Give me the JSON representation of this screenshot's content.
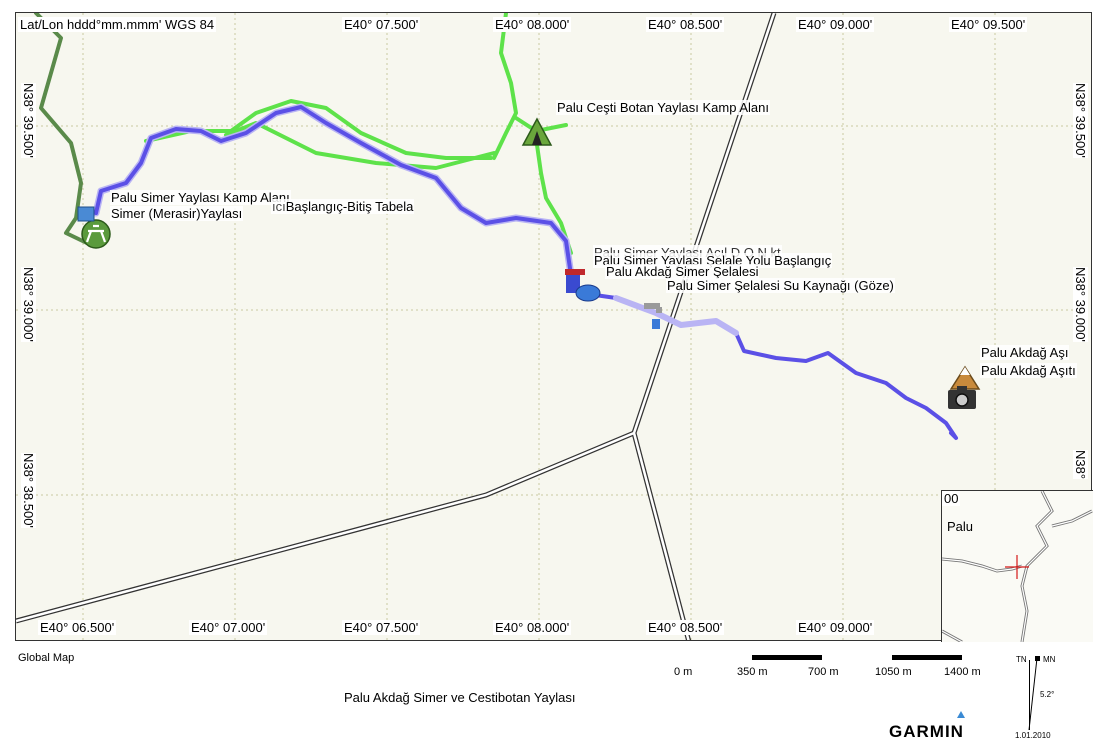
{
  "datum_label": "Lat/Lon hddd°mm.mmm' WGS 84",
  "top_lon_labels": [
    "E40° 07.500'",
    "E40° 08.000'",
    "E40° 08.500'",
    "E40° 09.000'",
    "E40° 09.500'"
  ],
  "bottom_lon_labels": [
    "E40° 06.500'",
    "E40° 07.000'",
    "E40° 07.500'",
    "E40° 08.000'",
    "E40° 08.500'",
    "E40° 09.000'"
  ],
  "left_lat_labels": [
    "N38° 39.500'",
    "N38° 39.000'",
    "N38° 38.500'"
  ],
  "right_lat_labels": [
    "N38° 39.500'",
    "N38° 39.000'",
    "N38°"
  ],
  "poi": {
    "botan_camp": "Palu Ceşti Botan Yaylası Kamp Alanı",
    "simer_camp": "Palu Simer Yaylası Kamp Alanı",
    "merasir": "Simer (Merasir)Yaylası",
    "tabela": "Başlangıç-Bitiş Tabela",
    "tabela_prefix": "ıcı",
    "hidden_overlap": "Palu Simer Yaylası Açıl D    O  N  kt",
    "waterfall_start": "Palu Simer Yaylası Şelale Yolu Başlangıç",
    "akdag_simer_waterfall": "Palu Akdağ Simer Şelalesi",
    "water_source": "Palu Simer  Şelalesi Su Kaynağı (Göze)",
    "akdag_pass_1": "Palu Akdağ Aşı",
    "akdag_pass_2": "Palu Akdağ Aşıtı"
  },
  "inset": {
    "label": "Palu",
    "corner_text": "00"
  },
  "footer": {
    "global_map": "Global Map",
    "title": "Palu Akdağ Simer ve Cestibotan Yaylası",
    "scale_labels": [
      "0 m",
      "350 m",
      "700 m",
      "1050 m",
      "1400 m"
    ],
    "brand": "GARMIN",
    "compass_tn": "TN",
    "compass_mn": "MN",
    "declination": "5.2°",
    "date": "1.01.2010"
  },
  "colors": {
    "track_blue": "#5b50e6",
    "track_green": "#5ee24a",
    "track_dark_green": "#5a8a4a",
    "grid": "#c8c8a0",
    "road": "#333333"
  }
}
